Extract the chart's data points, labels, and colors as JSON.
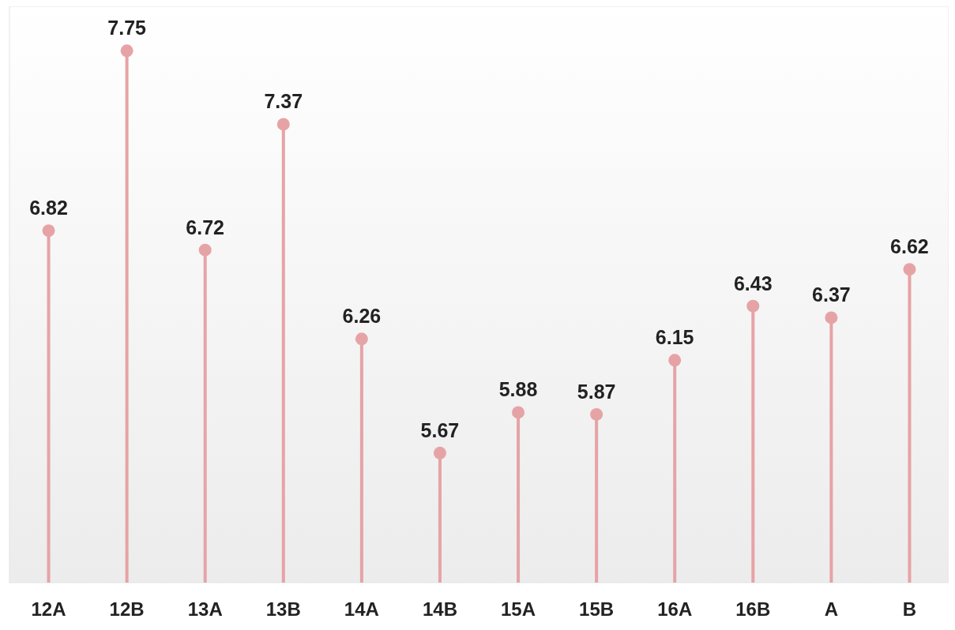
{
  "chart_data": {
    "type": "lollipop",
    "categories": [
      "12A",
      "12B",
      "13A",
      "13B",
      "14A",
      "14B",
      "15A",
      "15B",
      "16A",
      "16B",
      "A",
      "B"
    ],
    "values": [
      6.82,
      7.75,
      6.72,
      7.37,
      6.26,
      5.67,
      5.88,
      5.87,
      6.15,
      6.43,
      6.37,
      6.62
    ],
    "color": "#e6a3a6",
    "ylim": [
      5,
      7.98
    ],
    "data_labels": true,
    "tick_labels": "x"
  }
}
